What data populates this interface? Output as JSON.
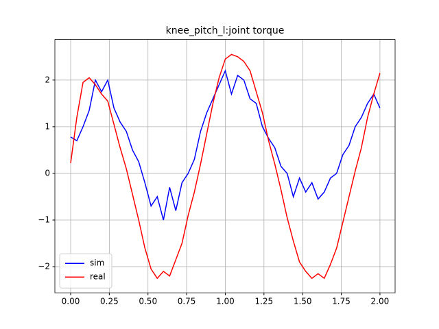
{
  "chart_data": {
    "type": "line",
    "title": "knee_pitch_l:joint torque",
    "x": [
      0,
      0.04,
      0.08,
      0.12,
      0.16,
      0.2,
      0.24,
      0.28,
      0.32,
      0.36,
      0.4,
      0.44,
      0.48,
      0.52,
      0.56,
      0.6,
      0.64,
      0.68,
      0.72,
      0.76,
      0.8,
      0.84,
      0.88,
      0.92,
      0.96,
      1.0,
      1.04,
      1.08,
      1.12,
      1.16,
      1.2,
      1.24,
      1.28,
      1.32,
      1.36,
      1.4,
      1.44,
      1.48,
      1.52,
      1.56,
      1.6,
      1.64,
      1.68,
      1.72,
      1.76,
      1.8,
      1.84,
      1.88,
      1.92,
      1.96,
      2.0
    ],
    "series": [
      {
        "name": "sim",
        "color": "#0000ff",
        "values": [
          0.78,
          0.7,
          1.0,
          1.35,
          2.0,
          1.75,
          2.0,
          1.4,
          1.1,
          0.9,
          0.5,
          0.25,
          -0.2,
          -0.7,
          -0.5,
          -1.0,
          -0.3,
          -0.8,
          -0.2,
          0.0,
          0.3,
          0.9,
          1.3,
          1.6,
          1.9,
          2.2,
          1.7,
          2.1,
          2.0,
          1.6,
          1.5,
          1.0,
          0.75,
          0.55,
          0.15,
          0.0,
          -0.5,
          -0.1,
          -0.4,
          -0.2,
          -0.55,
          -0.4,
          -0.1,
          0.0,
          0.4,
          0.6,
          1.0,
          1.2,
          1.5,
          1.7,
          1.4
        ]
      },
      {
        "name": "real",
        "color": "#ff0000",
        "values": [
          0.22,
          1.2,
          1.95,
          2.05,
          1.9,
          1.7,
          1.55,
          1.05,
          0.55,
          0.1,
          -0.45,
          -1.0,
          -1.6,
          -2.05,
          -2.25,
          -2.1,
          -2.2,
          -1.85,
          -1.5,
          -0.9,
          -0.4,
          0.2,
          0.85,
          1.5,
          2.05,
          2.45,
          2.55,
          2.5,
          2.4,
          2.2,
          1.75,
          1.3,
          0.7,
          0.2,
          -0.35,
          -0.95,
          -1.45,
          -1.9,
          -2.1,
          -2.25,
          -2.15,
          -2.25,
          -1.95,
          -1.6,
          -1.05,
          -0.5,
          0.05,
          0.55,
          1.2,
          1.7,
          2.15
        ]
      }
    ],
    "xlim": [
      -0.102,
      2.098
    ],
    "ylim": [
      -2.56,
      2.87
    ],
    "xticks": [
      {
        "value": 0,
        "label": "0.00"
      },
      {
        "value": 0.25,
        "label": "0.25"
      },
      {
        "value": 0.5,
        "label": "0.50"
      },
      {
        "value": 0.75,
        "label": "0.75"
      },
      {
        "value": 1,
        "label": "1.00"
      },
      {
        "value": 1.25,
        "label": "1.25"
      },
      {
        "value": 1.5,
        "label": "1.50"
      },
      {
        "value": 1.75,
        "label": "1.75"
      },
      {
        "value": 2,
        "label": "2.00"
      }
    ],
    "yticks": [
      {
        "value": -2,
        "label": "−2"
      },
      {
        "value": -1,
        "label": "−1"
      },
      0,
      1,
      2
    ],
    "grid": true,
    "legend": "lower left"
  }
}
